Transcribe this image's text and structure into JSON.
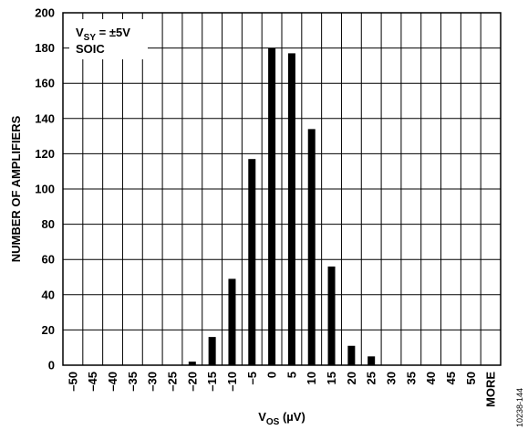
{
  "chart_data": {
    "type": "bar",
    "title": "",
    "xlabel": "V_OS (µV)",
    "xlabel_main": "V",
    "xlabel_sub": "OS",
    "xlabel_unit": " (µV)",
    "ylabel": "NUMBER OF AMPLIFIERS",
    "ylim": [
      0,
      200
    ],
    "yticks": [
      0,
      20,
      40,
      60,
      80,
      100,
      120,
      140,
      160,
      180,
      200
    ],
    "grid": true,
    "categories": [
      "–50",
      "–45",
      "–40",
      "–35",
      "–30",
      "–25",
      "–20",
      "–15",
      "–10",
      "–5",
      "0",
      "5",
      "10",
      "15",
      "20",
      "25",
      "30",
      "35",
      "40",
      "45",
      "50",
      "MORE"
    ],
    "values": [
      0,
      0,
      0,
      0,
      0,
      0,
      2,
      16,
      49,
      117,
      180,
      177,
      134,
      56,
      11,
      5,
      0,
      0,
      0,
      0,
      0,
      0
    ],
    "bar_color": "#000000",
    "annotation": {
      "line1_main": "V",
      "line1_sub": "SY",
      "line1_rest": " = ±5V",
      "line2": "SOIC"
    },
    "figure_id": "10238-144"
  }
}
